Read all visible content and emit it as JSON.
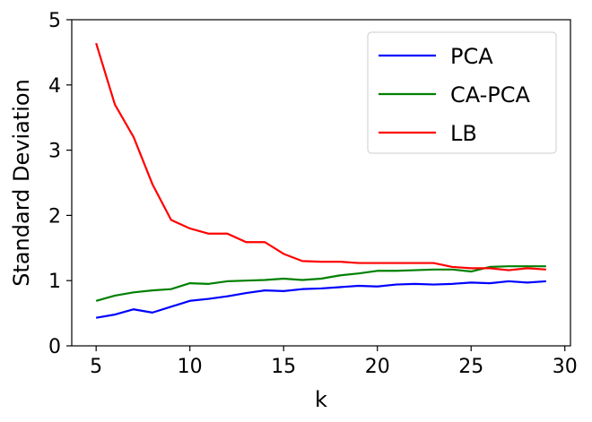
{
  "chart_data": {
    "type": "line",
    "xlabel": "k",
    "ylabel": "Standard Deviation",
    "xlim": [
      3.7,
      30.3
    ],
    "ylim": [
      0,
      5
    ],
    "xticks": [
      5,
      10,
      15,
      20,
      25,
      30
    ],
    "yticks": [
      0,
      1,
      2,
      3,
      4,
      5
    ],
    "grid": false,
    "legend_position": "top-right",
    "x": [
      5,
      6,
      7,
      8,
      9,
      10,
      11,
      12,
      13,
      14,
      15,
      16,
      17,
      18,
      19,
      20,
      21,
      22,
      23,
      24,
      25,
      26,
      27,
      28,
      29
    ],
    "series": [
      {
        "name": "PCA",
        "color": "#0000ff",
        "values": [
          0.43,
          0.48,
          0.56,
          0.51,
          0.6,
          0.69,
          0.72,
          0.76,
          0.81,
          0.85,
          0.84,
          0.87,
          0.88,
          0.9,
          0.92,
          0.91,
          0.94,
          0.95,
          0.94,
          0.95,
          0.97,
          0.96,
          0.99,
          0.97,
          0.99
        ]
      },
      {
        "name": "CA-PCA",
        "color": "#008000",
        "values": [
          0.69,
          0.77,
          0.82,
          0.85,
          0.87,
          0.96,
          0.95,
          0.99,
          1.0,
          1.01,
          1.03,
          1.01,
          1.03,
          1.08,
          1.11,
          1.15,
          1.15,
          1.16,
          1.17,
          1.17,
          1.14,
          1.21,
          1.22,
          1.22,
          1.22
        ]
      },
      {
        "name": "LB",
        "color": "#ff0000",
        "values": [
          4.64,
          3.7,
          3.2,
          2.48,
          1.93,
          1.8,
          1.72,
          1.72,
          1.59,
          1.59,
          1.41,
          1.3,
          1.29,
          1.29,
          1.27,
          1.27,
          1.27,
          1.27,
          1.27,
          1.21,
          1.19,
          1.19,
          1.16,
          1.19,
          1.17
        ]
      }
    ]
  }
}
